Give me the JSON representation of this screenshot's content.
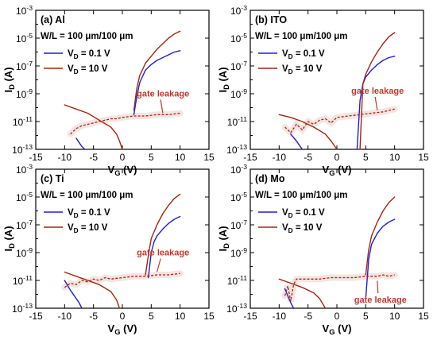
{
  "colors": {
    "vd_low": "#1f1fd6",
    "vd_high": "#a3260d",
    "annotation": "#c0392b"
  },
  "legend": {
    "vd_low": "V_D = 0.1 V",
    "vd_high": "V_D = 10 V"
  },
  "chart_data": [
    {
      "type": "line",
      "label": "(a)",
      "material": "Al",
      "title": "(a)  Al",
      "wl": "W/L = 100 μm/100 μm",
      "xlabel": "V_G (V)",
      "ylabel": "I_D (A)",
      "xlim": [
        -15,
        15
      ],
      "ylim_log10": [
        -13,
        -3
      ],
      "x_ticks": [
        "-15",
        "-10",
        "-5",
        "0",
        "5",
        "10",
        "15"
      ],
      "y_ticks": [
        "10^-13",
        "10^-11",
        "10^-9",
        "10^-7",
        "10^-5",
        "10^-3"
      ],
      "annotation": "gate leakage",
      "series": [
        {
          "name": "V_D = 0.1 V",
          "color_key": "vd_low",
          "points": [
            [
              -8,
              -12.2
            ],
            [
              -7.5,
              -12.5
            ],
            [
              -7,
              -12.8
            ],
            [
              -6.5,
              -13
            ]
          ]
        },
        {
          "name": "V_D = 0.1 V",
          "color_key": "vd_low",
          "points": [
            [
              2,
              -10.5
            ],
            [
              2.5,
              -9.2
            ],
            [
              3,
              -8.2
            ],
            [
              4,
              -7.3
            ],
            [
              5,
              -6.9
            ],
            [
              6,
              -6.6
            ],
            [
              7,
              -6.4
            ],
            [
              8,
              -6.2
            ],
            [
              9,
              -6.0
            ],
            [
              10,
              -5.9
            ]
          ]
        },
        {
          "name": "V_D = 10 V",
          "color_key": "vd_high",
          "points": [
            [
              -10,
              -9.8
            ],
            [
              -8,
              -10.1
            ],
            [
              -6,
              -10.4
            ],
            [
              -4,
              -10.9
            ],
            [
              -2,
              -11.4
            ],
            [
              -1,
              -11.9
            ],
            [
              -0.5,
              -12.4
            ],
            [
              0,
              -13
            ]
          ]
        },
        {
          "name": "V_D = 10 V",
          "color_key": "vd_high",
          "points": [
            [
              2,
              -10.2
            ],
            [
              2.5,
              -8.6
            ],
            [
              3,
              -7.7
            ],
            [
              4,
              -6.8
            ],
            [
              5,
              -6.3
            ],
            [
              6,
              -5.8
            ],
            [
              7,
              -5.4
            ],
            [
              8,
              -5.0
            ],
            [
              9,
              -4.7
            ],
            [
              10,
              -4.5
            ]
          ]
        },
        {
          "name": "gate leakage",
          "color_key": "vd_high",
          "style": "leak",
          "points": [
            [
              -9,
              -11.9
            ],
            [
              -8,
              -11.5
            ],
            [
              -7,
              -11.3
            ],
            [
              -6,
              -11.2
            ],
            [
              -5,
              -11.1
            ],
            [
              -4,
              -11.0
            ],
            [
              -3,
              -10.9
            ],
            [
              -2,
              -10.8
            ],
            [
              -1,
              -10.8
            ],
            [
              0,
              -10.7
            ],
            [
              2,
              -10.6
            ],
            [
              4,
              -10.6
            ],
            [
              6,
              -10.5
            ],
            [
              8,
              -10.5
            ],
            [
              10,
              -10.4
            ]
          ]
        }
      ],
      "annotation_target": [
        7,
        -10.5
      ]
    },
    {
      "type": "line",
      "label": "(b)",
      "material": "ITO",
      "title": "(b)  ITO",
      "wl": "W/L = 100 μm/100 μm",
      "xlabel": "V_G (V)",
      "ylabel": "I_D (A)",
      "xlim": [
        -15,
        15
      ],
      "ylim_log10": [
        -13,
        -3
      ],
      "x_ticks": [
        "-15",
        "-10",
        "-5",
        "0",
        "5",
        "10",
        "15"
      ],
      "y_ticks": [
        "10^-13",
        "10^-11",
        "10^-9",
        "10^-7",
        "10^-5",
        "10^-3"
      ],
      "annotation": "gate leakage",
      "series": [
        {
          "name": "V_D = 0.1 V",
          "color_key": "vd_low",
          "points": [
            [
              -8,
              -11.9
            ],
            [
              -7,
              -12.4
            ],
            [
              -6.5,
              -12.7
            ],
            [
              -6,
              -13
            ]
          ]
        },
        {
          "name": "V_D = 0.1 V",
          "color_key": "vd_low",
          "points": [
            [
              3.5,
              -13
            ],
            [
              4,
              -9.5
            ],
            [
              4.5,
              -8.3
            ],
            [
              5,
              -7.8
            ],
            [
              6,
              -7.3
            ],
            [
              7,
              -6.9
            ],
            [
              8,
              -6.6
            ],
            [
              9,
              -6.4
            ],
            [
              10,
              -6.3
            ]
          ]
        },
        {
          "name": "V_D = 10 V",
          "color_key": "vd_high",
          "points": [
            [
              -10,
              -10.5
            ],
            [
              -8,
              -10.7
            ],
            [
              -6,
              -11.0
            ],
            [
              -4,
              -11.4
            ],
            [
              -2,
              -11.9
            ],
            [
              -1,
              -12.4
            ],
            [
              0,
              -13
            ]
          ]
        },
        {
          "name": "V_D = 10 V",
          "color_key": "vd_high",
          "points": [
            [
              4,
              -13
            ],
            [
              4.5,
              -8.3
            ],
            [
              5,
              -7.6
            ],
            [
              6,
              -6.7
            ],
            [
              7,
              -6.0
            ],
            [
              8,
              -5.4
            ],
            [
              9,
              -4.9
            ],
            [
              10,
              -4.6
            ]
          ]
        },
        {
          "name": "gate leakage",
          "color_key": "vd_high",
          "style": "leak",
          "points": [
            [
              -9,
              -11.4
            ],
            [
              -8,
              -11.8
            ],
            [
              -7,
              -11.2
            ],
            [
              -6,
              -11.6
            ],
            [
              -5,
              -11.0
            ],
            [
              -4,
              -11.2
            ],
            [
              -3,
              -10.9
            ],
            [
              -2,
              -10.8
            ],
            [
              -1,
              -11.1
            ],
            [
              0,
              -10.7
            ],
            [
              2,
              -10.6
            ],
            [
              4,
              -10.5
            ],
            [
              6,
              -10.4
            ],
            [
              8,
              -10.3
            ],
            [
              10,
              -10.1
            ]
          ]
        }
      ],
      "annotation_target": [
        7,
        -10.3
      ]
    },
    {
      "type": "line",
      "label": "(c)",
      "material": "Ti",
      "title": "(c)  Ti",
      "wl": "W/L = 100 μm/100 μm",
      "xlabel": "V_G (V)",
      "ylabel": "I_D (A)",
      "xlim": [
        -15,
        15
      ],
      "ylim_log10": [
        -13,
        -3
      ],
      "x_ticks": [
        "-15",
        "-10",
        "-5",
        "0",
        "5",
        "10",
        "15"
      ],
      "y_ticks": [
        "10^-13",
        "10^-11",
        "10^-9",
        "10^-7",
        "10^-5",
        "10^-3"
      ],
      "annotation": "gate leakage",
      "series": [
        {
          "name": "V_D = 0.1 V",
          "color_key": "vd_low",
          "points": [
            [
              -10,
              -11.0
            ],
            [
              -9,
              -11.7
            ],
            [
              -8,
              -12.3
            ],
            [
              -7.5,
              -12.6
            ],
            [
              -7,
              -13
            ]
          ]
        },
        {
          "name": "V_D = 0.1 V",
          "color_key": "vd_low",
          "points": [
            [
              4.5,
              -10.8
            ],
            [
              5,
              -9.0
            ],
            [
              5.5,
              -8.2
            ],
            [
              6,
              -7.8
            ],
            [
              7,
              -7.3
            ],
            [
              8,
              -6.9
            ],
            [
              9,
              -6.6
            ],
            [
              10,
              -6.4
            ]
          ]
        },
        {
          "name": "V_D = 10 V",
          "color_key": "vd_high",
          "points": [
            [
              -10,
              -10.4
            ],
            [
              -8,
              -10.7
            ],
            [
              -6,
              -11.0
            ],
            [
              -4,
              -11.3
            ],
            [
              -2,
              -11.8
            ],
            [
              -1,
              -12.4
            ],
            [
              -0.5,
              -13
            ]
          ]
        },
        {
          "name": "V_D = 10 V",
          "color_key": "vd_high",
          "points": [
            [
              4,
              -10.6
            ],
            [
              4.5,
              -9.2
            ],
            [
              5,
              -8.0
            ],
            [
              6,
              -7.0
            ],
            [
              7,
              -6.2
            ],
            [
              8,
              -5.6
            ],
            [
              9,
              -5.1
            ],
            [
              10,
              -4.8
            ]
          ]
        },
        {
          "name": "gate leakage",
          "color_key": "vd_high",
          "style": "leak",
          "points": [
            [
              -10,
              -11.5
            ],
            [
              -9,
              -11.2
            ],
            [
              -8,
              -11.3
            ],
            [
              -7,
              -11.0
            ],
            [
              -6,
              -11.1
            ],
            [
              -5,
              -10.9
            ],
            [
              -4,
              -11.0
            ],
            [
              -3,
              -10.8
            ],
            [
              -2,
              -10.9
            ],
            [
              0,
              -10.8
            ],
            [
              2,
              -10.7
            ],
            [
              4,
              -10.7
            ],
            [
              6,
              -10.6
            ],
            [
              8,
              -10.6
            ],
            [
              10,
              -10.5
            ]
          ]
        }
      ],
      "annotation_target": [
        6,
        -10.5
      ]
    },
    {
      "type": "line",
      "label": "(d)",
      "material": "Mo",
      "title": "(d)  Mo",
      "wl": "W/L = 100 μm/100 μm",
      "xlabel": "V_G (V)",
      "ylabel": "I_D (A)",
      "xlim": [
        -15,
        15
      ],
      "ylim_log10": [
        -13,
        -3
      ],
      "x_ticks": [
        "-15",
        "-10",
        "-5",
        "0",
        "5",
        "10",
        "15"
      ],
      "y_ticks": [
        "10^-13",
        "10^-11",
        "10^-9",
        "10^-7",
        "10^-5",
        "10^-3"
      ],
      "annotation": "gate leakage",
      "series": [
        {
          "name": "V_D = 0.1 V",
          "color_key": "vd_low",
          "points": [
            [
              -9,
              -11.6
            ],
            [
              -8.5,
              -12.1
            ],
            [
              -8,
              -12.6
            ],
            [
              -7.5,
              -13
            ]
          ]
        },
        {
          "name": "V_D = 0.1 V",
          "color_key": "vd_low",
          "points": [
            [
              5,
              -12.3
            ],
            [
              5.5,
              -9.5
            ],
            [
              6,
              -8.4
            ],
            [
              7,
              -7.6
            ],
            [
              8,
              -7.1
            ],
            [
              9,
              -6.8
            ],
            [
              10,
              -6.6
            ]
          ]
        },
        {
          "name": "V_D = 10 V",
          "color_key": "vd_high",
          "points": [
            [
              -10,
              -10.9
            ],
            [
              -8,
              -11.2
            ],
            [
              -6,
              -11.5
            ],
            [
              -4,
              -11.9
            ],
            [
              -3,
              -12.3
            ],
            [
              -2,
              -13
            ]
          ]
        },
        {
          "name": "V_D = 10 V",
          "color_key": "vd_high",
          "points": [
            [
              5,
              -10.6
            ],
            [
              5.5,
              -8.8
            ],
            [
              6,
              -7.8
            ],
            [
              7,
              -6.8
            ],
            [
              8,
              -6.0
            ],
            [
              9,
              -5.4
            ],
            [
              10,
              -5.0
            ]
          ]
        },
        {
          "name": "gate leakage",
          "color_key": "vd_high",
          "style": "leak",
          "points": [
            [
              -9,
              -12.1
            ],
            [
              -8.5,
              -11.4
            ],
            [
              -8,
              -12.5
            ],
            [
              -7.5,
              -11.3
            ],
            [
              -7,
              -10.9
            ],
            [
              -5,
              -10.9
            ],
            [
              -3,
              -10.9
            ],
            [
              -1,
              -10.8
            ],
            [
              1,
              -10.8
            ],
            [
              3,
              -10.8
            ],
            [
              5,
              -10.7
            ],
            [
              7,
              -10.7
            ],
            [
              8,
              -10.6
            ],
            [
              9,
              -10.7
            ],
            [
              10,
              -10.6
            ]
          ]
        }
      ],
      "annotation_target": [
        7,
        -10.8
      ]
    }
  ]
}
